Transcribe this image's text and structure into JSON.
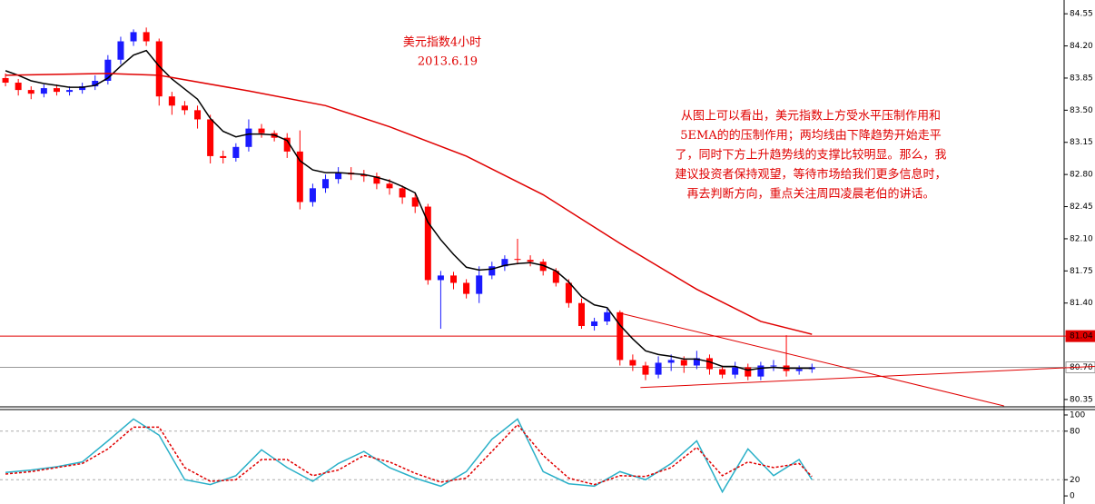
{
  "chart_data": [
    {
      "type": "candlestick",
      "title": "美元指数4小时",
      "subtitle": "2013.6.19",
      "annotation": [
        "从图上可以看出，美元指数上方受水平压制作用和",
        "5EMA的的压制作用；两均线由下降趋势开始走平",
        "了，同时下方上升趋势线的支撑比较明显。那么，我",
        "建议投资者保持观望，等待市场给我们更多信息时，",
        "再去判断方向，重点关注周四凌晨老伯的讲话。"
      ],
      "up_color": "#1a1aff",
      "down_color": "#ff0000",
      "xlim": [
        -0.43,
        82.7
      ],
      "ylim": [
        80.27,
        84.7
      ],
      "yticks": [
        84.55,
        {
          "value": 84.2,
          "label": "84.20"
        },
        83.85,
        {
          "value": 83.5,
          "label": "83.50"
        },
        83.15,
        {
          "value": 82.8,
          "label": "82.80"
        },
        82.45,
        {
          "value": 82.1,
          "label": "82.10"
        },
        81.75,
        {
          "value": 81.4,
          "label": "81.40"
        },
        80.35
      ],
      "ohlc": [
        [
          83.85,
          83.9,
          83.76,
          83.8
        ],
        [
          83.8,
          83.84,
          83.66,
          83.72
        ],
        [
          83.72,
          83.76,
          83.62,
          83.68
        ],
        [
          83.68,
          83.78,
          83.64,
          83.74
        ],
        [
          83.74,
          83.78,
          83.66,
          83.7
        ],
        [
          83.7,
          83.76,
          83.66,
          83.72
        ],
        [
          83.72,
          83.8,
          83.68,
          83.76
        ],
        [
          83.76,
          83.88,
          83.72,
          83.82
        ],
        [
          83.82,
          84.1,
          83.78,
          84.05
        ],
        [
          84.05,
          84.3,
          84.0,
          84.25
        ],
        [
          84.25,
          84.38,
          84.2,
          84.35
        ],
        [
          84.35,
          84.4,
          84.2,
          84.25
        ],
        [
          84.25,
          84.28,
          83.55,
          83.65
        ],
        [
          83.65,
          83.7,
          83.45,
          83.55
        ],
        [
          83.55,
          83.6,
          83.45,
          83.5
        ],
        [
          83.5,
          83.55,
          83.3,
          83.4
        ],
        [
          83.4,
          83.45,
          82.92,
          83.0
        ],
        [
          83.0,
          83.06,
          82.92,
          82.98
        ],
        [
          82.98,
          83.14,
          82.94,
          83.1
        ],
        [
          83.1,
          83.4,
          83.05,
          83.3
        ],
        [
          83.3,
          83.35,
          83.2,
          83.25
        ],
        [
          83.25,
          83.28,
          83.16,
          83.2
        ],
        [
          83.2,
          83.25,
          82.98,
          83.05
        ],
        [
          83.05,
          83.28,
          82.42,
          82.5
        ],
        [
          82.5,
          82.7,
          82.45,
          82.65
        ],
        [
          82.65,
          82.8,
          82.6,
          82.75
        ],
        [
          82.75,
          82.88,
          82.7,
          82.82
        ],
        [
          82.82,
          82.88,
          82.74,
          82.8
        ],
        [
          82.8,
          82.85,
          82.72,
          82.78
        ],
        [
          82.78,
          82.82,
          82.64,
          82.7
        ],
        [
          82.7,
          82.75,
          82.58,
          82.65
        ],
        [
          82.65,
          82.68,
          82.48,
          82.55
        ],
        [
          82.55,
          82.6,
          82.38,
          82.45
        ],
        [
          82.45,
          82.48,
          81.6,
          81.65
        ],
        [
          81.65,
          81.75,
          81.12,
          81.7
        ],
        [
          81.7,
          81.74,
          81.55,
          81.62
        ],
        [
          81.62,
          81.66,
          81.45,
          81.5
        ],
        [
          81.5,
          81.8,
          81.4,
          81.7
        ],
        [
          81.7,
          81.85,
          81.66,
          81.8
        ],
        [
          81.8,
          81.92,
          81.75,
          81.88
        ],
        [
          81.88,
          82.1,
          81.82,
          81.87
        ],
        [
          81.87,
          81.92,
          81.8,
          81.85
        ],
        [
          81.85,
          81.88,
          81.7,
          81.75
        ],
        [
          81.75,
          81.78,
          81.58,
          81.62
        ],
        [
          81.62,
          81.66,
          81.35,
          81.4
        ],
        [
          81.4,
          81.45,
          81.12,
          81.15
        ],
        [
          81.15,
          81.24,
          81.1,
          81.2
        ],
        [
          81.2,
          81.34,
          81.16,
          81.3
        ],
        [
          81.3,
          81.32,
          80.72,
          80.78
        ],
        [
          80.78,
          80.84,
          80.66,
          80.72
        ],
        [
          80.72,
          80.76,
          80.56,
          80.62
        ],
        [
          80.62,
          80.82,
          80.58,
          80.75
        ],
        [
          80.75,
          80.84,
          80.66,
          80.78
        ],
        [
          80.78,
          80.82,
          80.64,
          80.72
        ],
        [
          80.72,
          80.88,
          80.68,
          80.8
        ],
        [
          80.8,
          80.84,
          80.62,
          80.68
        ],
        [
          80.68,
          80.72,
          80.58,
          80.62
        ],
        [
          80.62,
          80.76,
          80.58,
          80.7
        ],
        [
          80.7,
          80.74,
          80.56,
          80.6
        ],
        [
          80.6,
          80.76,
          80.56,
          80.72
        ],
        [
          80.72,
          80.78,
          80.66,
          80.72
        ],
        [
          80.72,
          81.05,
          80.6,
          80.66
        ],
        [
          80.66,
          80.72,
          80.62,
          80.68
        ],
        [
          80.68,
          80.74,
          80.64,
          80.7
        ]
      ],
      "series": [
        {
          "color": "#000000",
          "values": [
            83.93,
            83.88,
            83.82,
            83.79,
            83.77,
            83.75,
            83.75,
            83.77,
            83.85,
            83.98,
            84.1,
            84.15,
            83.98,
            83.84,
            83.73,
            83.62,
            83.41,
            83.27,
            83.21,
            83.24,
            83.24,
            83.23,
            83.17,
            82.95,
            82.85,
            82.82,
            82.82,
            82.81,
            82.8,
            82.77,
            82.73,
            82.67,
            82.6,
            82.28,
            82.09,
            81.93,
            81.79,
            81.76,
            81.77,
            81.81,
            81.83,
            81.84,
            81.81,
            81.75,
            81.63,
            81.47,
            81.38,
            81.35,
            81.16,
            81.01,
            80.88,
            80.84,
            80.82,
            80.79,
            80.79,
            80.76,
            80.71,
            80.71,
            80.67,
            80.69,
            80.7,
            80.69,
            80.69,
            80.69
          ]
        },
        {
          "color": "#e00000",
          "x": [
            0,
            8,
            12,
            19,
            25,
            30,
            36,
            42,
            48,
            54,
            59,
            63
          ],
          "values": [
            83.88,
            83.9,
            83.88,
            83.71,
            83.55,
            83.32,
            83.0,
            82.58,
            82.05,
            81.55,
            81.2,
            81.06
          ]
        }
      ],
      "trendlines": [
        {
          "color": "#e00000",
          "x": [
            48,
            78
          ],
          "values": [
            81.29,
            80.28
          ]
        },
        {
          "color": "#e00000",
          "x": [
            49.6,
            85.1
          ],
          "values": [
            80.48,
            80.71
          ]
        }
      ],
      "hlines": [
        {
          "value": 81.04,
          "label": "81.04",
          "color": "#e00000",
          "box": "#e00000",
          "text_color": "#ffffff"
        },
        {
          "value": 80.7,
          "label": "80.70",
          "color": "#999999",
          "box": "#ffffff",
          "text_color": "#000000"
        }
      ]
    },
    {
      "type": "line",
      "xlim": [
        -0.43,
        82.7
      ],
      "ylim": [
        -10,
        106.7
      ],
      "yticks": [
        100,
        80,
        20,
        0
      ],
      "grid": [
        80,
        20
      ],
      "series": [
        {
          "color": "#2ab0c8",
          "dash": false,
          "x": [
            0,
            2,
            4,
            6,
            8,
            10,
            12,
            14,
            16,
            18,
            20,
            22,
            24,
            26,
            28,
            30,
            32,
            34,
            36,
            38,
            40,
            42,
            44,
            46,
            48,
            50,
            52,
            54,
            56,
            58,
            60,
            62,
            63
          ],
          "values": [
            29,
            32,
            36,
            42,
            68,
            95,
            75,
            20,
            14,
            25,
            57,
            35,
            18,
            40,
            55,
            35,
            22,
            12,
            30,
            70,
            95,
            30,
            15,
            12,
            30,
            20,
            40,
            68,
            5,
            58,
            25,
            45,
            20
          ]
        },
        {
          "color": "#e00000",
          "dash": true,
          "x": [
            0,
            2,
            4,
            6,
            8,
            10,
            12,
            14,
            16,
            18,
            20,
            22,
            24,
            26,
            28,
            30,
            32,
            34,
            36,
            38,
            40,
            42,
            44,
            46,
            48,
            50,
            52,
            54,
            56,
            58,
            60,
            62,
            63
          ],
          "values": [
            27,
            30,
            35,
            40,
            58,
            85,
            85,
            35,
            18,
            20,
            45,
            45,
            25,
            32,
            50,
            42,
            28,
            17,
            22,
            55,
            88,
            50,
            22,
            14,
            25,
            24,
            35,
            60,
            25,
            42,
            35,
            40,
            24
          ]
        }
      ]
    }
  ]
}
